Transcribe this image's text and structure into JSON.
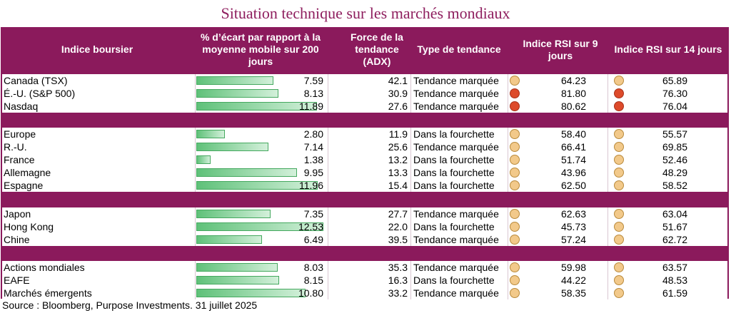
{
  "title": "Situation technique sur les marchés mondiaux",
  "headers": {
    "index": "Indice boursier",
    "pct": "% d’écart par rapport à la moyenne mobile sur 200 jours",
    "adx": "Force de la tendance (ADX)",
    "trend": "Type de tendance",
    "rsi9": "Indice RSI sur 9 jours",
    "rsi14": "Indice RSI sur 14 jours"
  },
  "colors": {
    "neutral": "#f2c98a",
    "overbought": "#dd4b2b",
    "header_bg": "#8b1a5c"
  },
  "groups": [
    [
      {
        "name": "Canada (TSX)",
        "pct": "7.59",
        "adx": "42.1",
        "trend": "Tendance marquée",
        "rsi9": "64.23",
        "rsi9_status": "neutral",
        "rsi14": "65.89",
        "rsi14_status": "neutral"
      },
      {
        "name": "É.-U. (S&P 500)",
        "pct": "8.13",
        "adx": "30.9",
        "trend": "Tendance marquée",
        "rsi9": "81.80",
        "rsi9_status": "overbought",
        "rsi14": "76.30",
        "rsi14_status": "overbought"
      },
      {
        "name": "Nasdaq",
        "pct": "11.89",
        "adx": "27.6",
        "trend": "Tendance marquée",
        "rsi9": "80.62",
        "rsi9_status": "overbought",
        "rsi14": "76.04",
        "rsi14_status": "overbought"
      }
    ],
    [
      {
        "name": "Europe",
        "pct": "2.80",
        "adx": "11.9",
        "trend": "Dans la fourchette",
        "rsi9": "58.40",
        "rsi9_status": "neutral",
        "rsi14": "55.57",
        "rsi14_status": "neutral"
      },
      {
        "name": "R.-U.",
        "pct": "7.14",
        "adx": "25.6",
        "trend": "Tendance marquée",
        "rsi9": "66.41",
        "rsi9_status": "neutral",
        "rsi14": "69.85",
        "rsi14_status": "neutral"
      },
      {
        "name": "France",
        "pct": "1.38",
        "adx": "13.2",
        "trend": "Dans la fourchette",
        "rsi9": "51.74",
        "rsi9_status": "neutral",
        "rsi14": "52.46",
        "rsi14_status": "neutral"
      },
      {
        "name": "Allemagne",
        "pct": "9.95",
        "adx": "13.3",
        "trend": "Dans la fourchette",
        "rsi9": "43.96",
        "rsi9_status": "neutral",
        "rsi14": "48.29",
        "rsi14_status": "neutral"
      },
      {
        "name": "Espagne",
        "pct": "11.96",
        "adx": "15.4",
        "trend": "Dans la fourchette",
        "rsi9": "62.50",
        "rsi9_status": "neutral",
        "rsi14": "58.52",
        "rsi14_status": "neutral"
      }
    ],
    [
      {
        "name": "Japon",
        "pct": "7.35",
        "adx": "27.7",
        "trend": "Tendance marquée",
        "rsi9": "62.63",
        "rsi9_status": "neutral",
        "rsi14": "63.04",
        "rsi14_status": "neutral"
      },
      {
        "name": "Hong Kong",
        "pct": "12.53",
        "adx": "22.0",
        "trend": "Dans la fourchette",
        "rsi9": "45.73",
        "rsi9_status": "neutral",
        "rsi14": "51.67",
        "rsi14_status": "neutral"
      },
      {
        "name": "Chine",
        "pct": "6.49",
        "adx": "39.5",
        "trend": "Tendance marquée",
        "rsi9": "57.24",
        "rsi9_status": "neutral",
        "rsi14": "62.72",
        "rsi14_status": "neutral"
      }
    ],
    [
      {
        "name": "Actions mondiales",
        "pct": "8.03",
        "adx": "35.3",
        "trend": "Tendance marquée",
        "rsi9": "59.98",
        "rsi9_status": "neutral",
        "rsi14": "63.57",
        "rsi14_status": "neutral"
      },
      {
        "name": "EAFE",
        "pct": "8.15",
        "adx": "16.3",
        "trend": "Dans la fourchette",
        "rsi9": "44.22",
        "rsi9_status": "neutral",
        "rsi14": "48.53",
        "rsi14_status": "neutral"
      },
      {
        "name": "Marchés émergents",
        "pct": "10.80",
        "adx": "33.2",
        "trend": "Tendance marquée",
        "rsi9": "58.35",
        "rsi9_status": "neutral",
        "rsi14": "61.59",
        "rsi14_status": "neutral"
      }
    ]
  ],
  "source": "Source : Bloomberg, Purpose Investments. 31 juillet 2025"
}
